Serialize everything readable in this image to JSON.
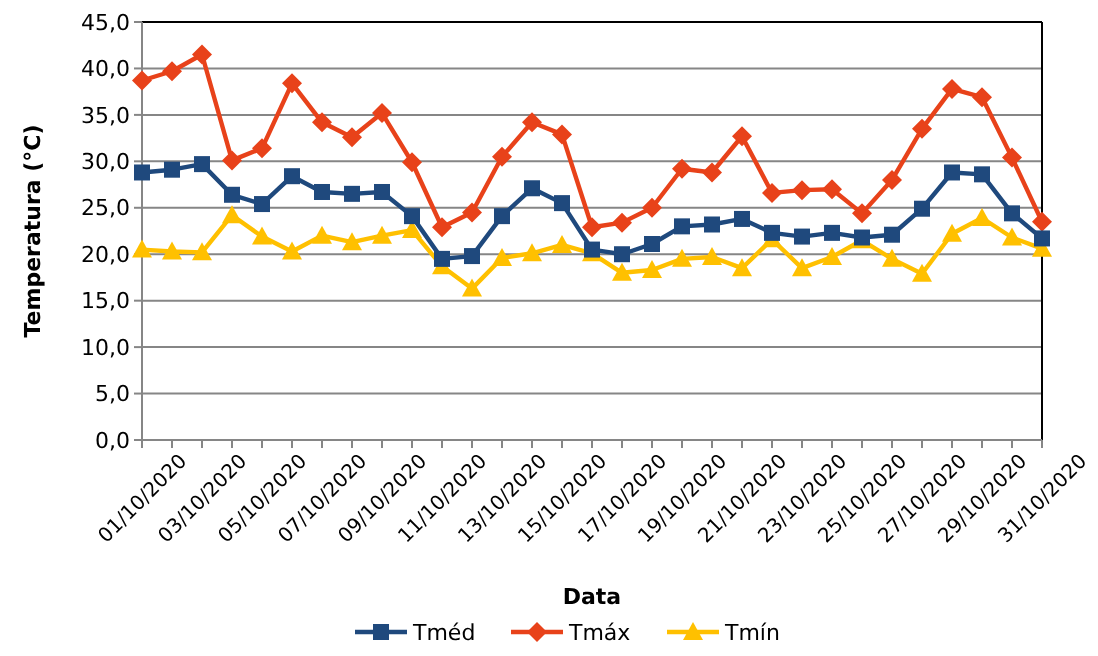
{
  "chart_data": {
    "type": "line",
    "xlabel": "Data",
    "ylabel": "Temperatura (°C)",
    "categories": [
      "01/10/2020",
      null,
      "03/10/2020",
      null,
      "05/10/2020",
      null,
      "07/10/2020",
      null,
      "09/10/2020",
      null,
      "11/10/2020",
      null,
      "13/10/2020",
      null,
      "15/10/2020",
      null,
      "17/10/2020",
      null,
      "19/10/2020",
      null,
      "21/10/2020",
      null,
      "23/10/2020",
      null,
      "25/10/2020",
      null,
      "27/10/2020",
      null,
      "29/10/2020",
      null,
      "31/10/2020"
    ],
    "series": [
      {
        "name": "Tméd",
        "color": "#1f497d",
        "marker": "square",
        "values": [
          28.8,
          29.1,
          29.7,
          26.4,
          25.4,
          28.4,
          26.7,
          26.5,
          26.7,
          24.1,
          19.5,
          19.8,
          24.1,
          27.1,
          25.5,
          20.5,
          20.0,
          21.1,
          23.0,
          23.2,
          23.8,
          22.3,
          21.9,
          22.3,
          21.8,
          22.1,
          24.9,
          28.8,
          28.6,
          24.4,
          21.7
        ]
      },
      {
        "name": "Tmáx",
        "color": "#e8421a",
        "marker": "diamond",
        "values": [
          38.7,
          39.7,
          41.5,
          30.1,
          31.4,
          38.4,
          34.2,
          32.6,
          35.2,
          29.9,
          22.9,
          24.5,
          30.5,
          34.2,
          32.9,
          22.9,
          23.4,
          25.0,
          29.2,
          28.8,
          32.7,
          26.6,
          26.9,
          27.0,
          24.4,
          28.0,
          33.5,
          37.8,
          36.9,
          30.4,
          23.5
        ]
      },
      {
        "name": "Tmín",
        "color": "#ffc000",
        "marker": "triangle",
        "values": [
          20.5,
          20.3,
          20.2,
          24.2,
          21.9,
          20.3,
          22.0,
          21.3,
          22.0,
          22.6,
          18.7,
          16.3,
          19.6,
          20.1,
          21.0,
          20.1,
          18.0,
          18.3,
          19.5,
          19.7,
          18.5,
          21.6,
          18.5,
          19.7,
          21.5,
          19.5,
          17.9,
          22.2,
          23.9,
          21.8,
          20.6
        ]
      }
    ],
    "ylim": [
      0,
      45
    ],
    "yticks": [
      {
        "value": 0,
        "label": "0,0"
      },
      {
        "value": 5,
        "label": "5,0"
      },
      {
        "value": 10,
        "label": "10,0"
      },
      {
        "value": 15,
        "label": "15,0"
      },
      {
        "value": 20,
        "label": "20,0"
      },
      {
        "value": 25,
        "label": "25,0"
      },
      {
        "value": 30,
        "label": "30,0"
      },
      {
        "value": 35,
        "label": "35,0"
      },
      {
        "value": 40,
        "label": "40,0"
      },
      {
        "value": 45,
        "label": "45,0"
      }
    ],
    "grid": "y",
    "legend": "bottom"
  }
}
